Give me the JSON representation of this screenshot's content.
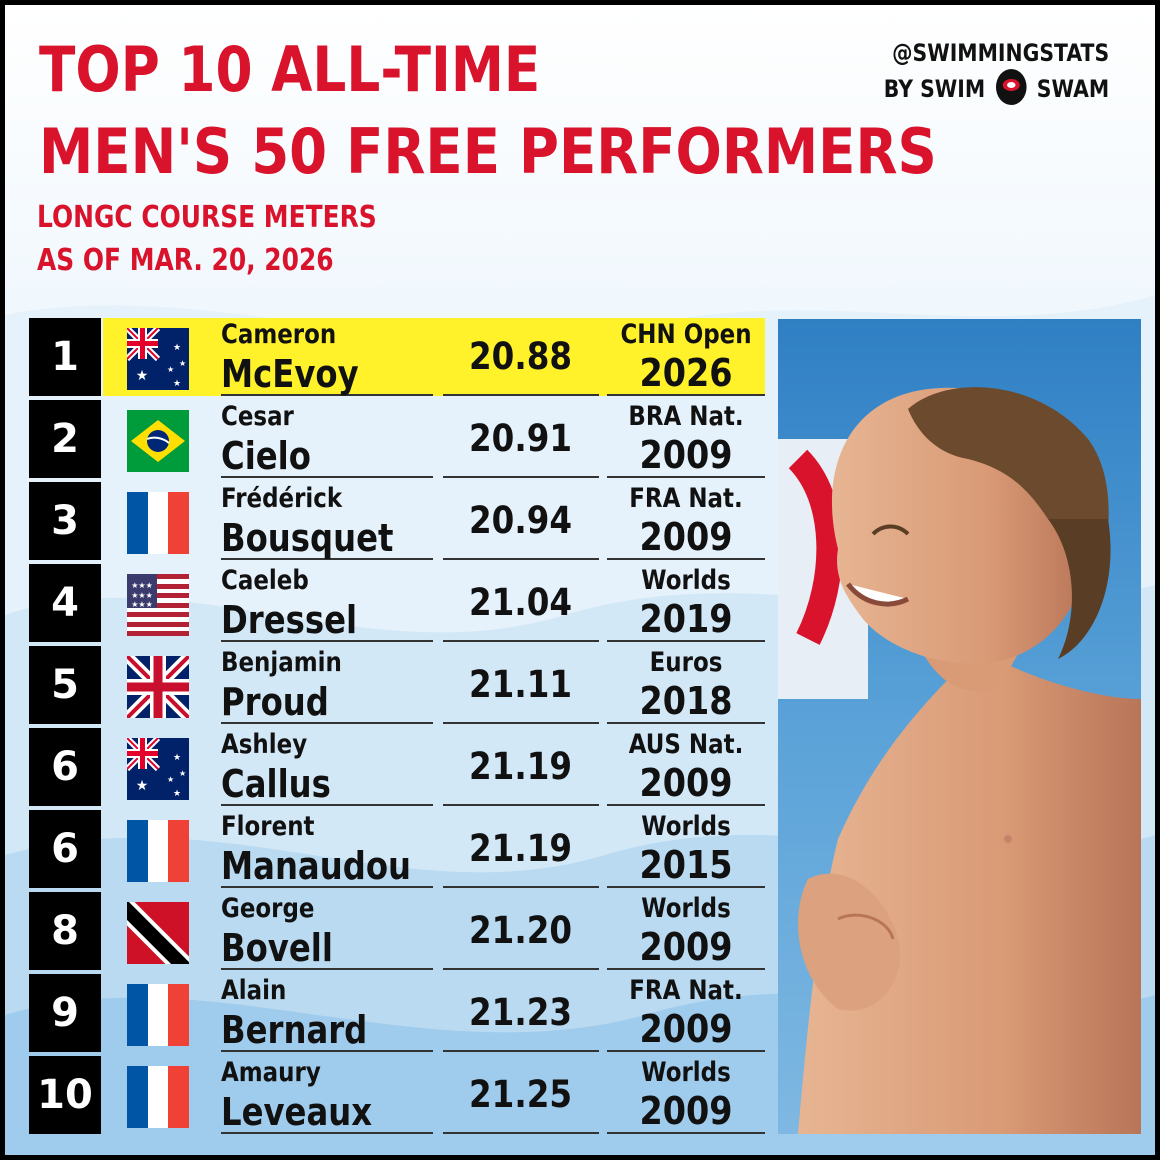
{
  "header": {
    "title_line1": "TOP 10 ALL-TIME",
    "title_line2": "MEN'S 50 FREE PERFORMERS",
    "subtitle_line1": "LONGC COURSE METERS",
    "subtitle_line2": "AS OF MAR. 20, 2026"
  },
  "brand": {
    "handle": "@SWIMMINGSTATS",
    "by_left": "BY SWIM",
    "by_right": "SWAM"
  },
  "colors": {
    "accent": "#d8132b",
    "highlight": "#fff12a",
    "rank_bg": "#000000"
  },
  "rankings": [
    {
      "rank": "1",
      "flag": "australia-flag",
      "first": "Cameron",
      "last": "McEvoy",
      "time": "20.88",
      "meet": "CHN Open",
      "year": "2026",
      "highlighted": true
    },
    {
      "rank": "2",
      "flag": "brazil-flag",
      "first": "Cesar",
      "last": "Cielo",
      "time": "20.91",
      "meet": "BRA Nat.",
      "year": "2009"
    },
    {
      "rank": "3",
      "flag": "france-flag",
      "first": "Frédérick",
      "last": "Bousquet",
      "time": "20.94",
      "meet": "FRA Nat.",
      "year": "2009"
    },
    {
      "rank": "4",
      "flag": "usa-flag",
      "first": "Caeleb",
      "last": "Dressel",
      "time": "21.04",
      "meet": "Worlds",
      "year": "2019"
    },
    {
      "rank": "5",
      "flag": "uk-flag",
      "first": "Benjamin",
      "last": "Proud",
      "time": "21.11",
      "meet": "Euros",
      "year": "2018"
    },
    {
      "rank": "6",
      "flag": "australia-flag",
      "first": "Ashley",
      "last": "Callus",
      "time": "21.19",
      "meet": "AUS Nat.",
      "year": "2009"
    },
    {
      "rank": "6",
      "flag": "france-flag",
      "first": "Florent",
      "last": "Manaudou",
      "time": "21.19",
      "meet": "Worlds",
      "year": "2015"
    },
    {
      "rank": "8",
      "flag": "trinidad-tobago-flag",
      "first": "George",
      "last": "Bovell",
      "time": "21.20",
      "meet": "Worlds",
      "year": "2009"
    },
    {
      "rank": "9",
      "flag": "france-flag",
      "first": "Alain",
      "last": "Bernard",
      "time": "21.23",
      "meet": "FRA Nat.",
      "year": "2009"
    },
    {
      "rank": "10",
      "flag": "france-flag",
      "first": "Amaury",
      "last": "Leveaux",
      "time": "21.25",
      "meet": "Worlds",
      "year": "2009"
    }
  ]
}
